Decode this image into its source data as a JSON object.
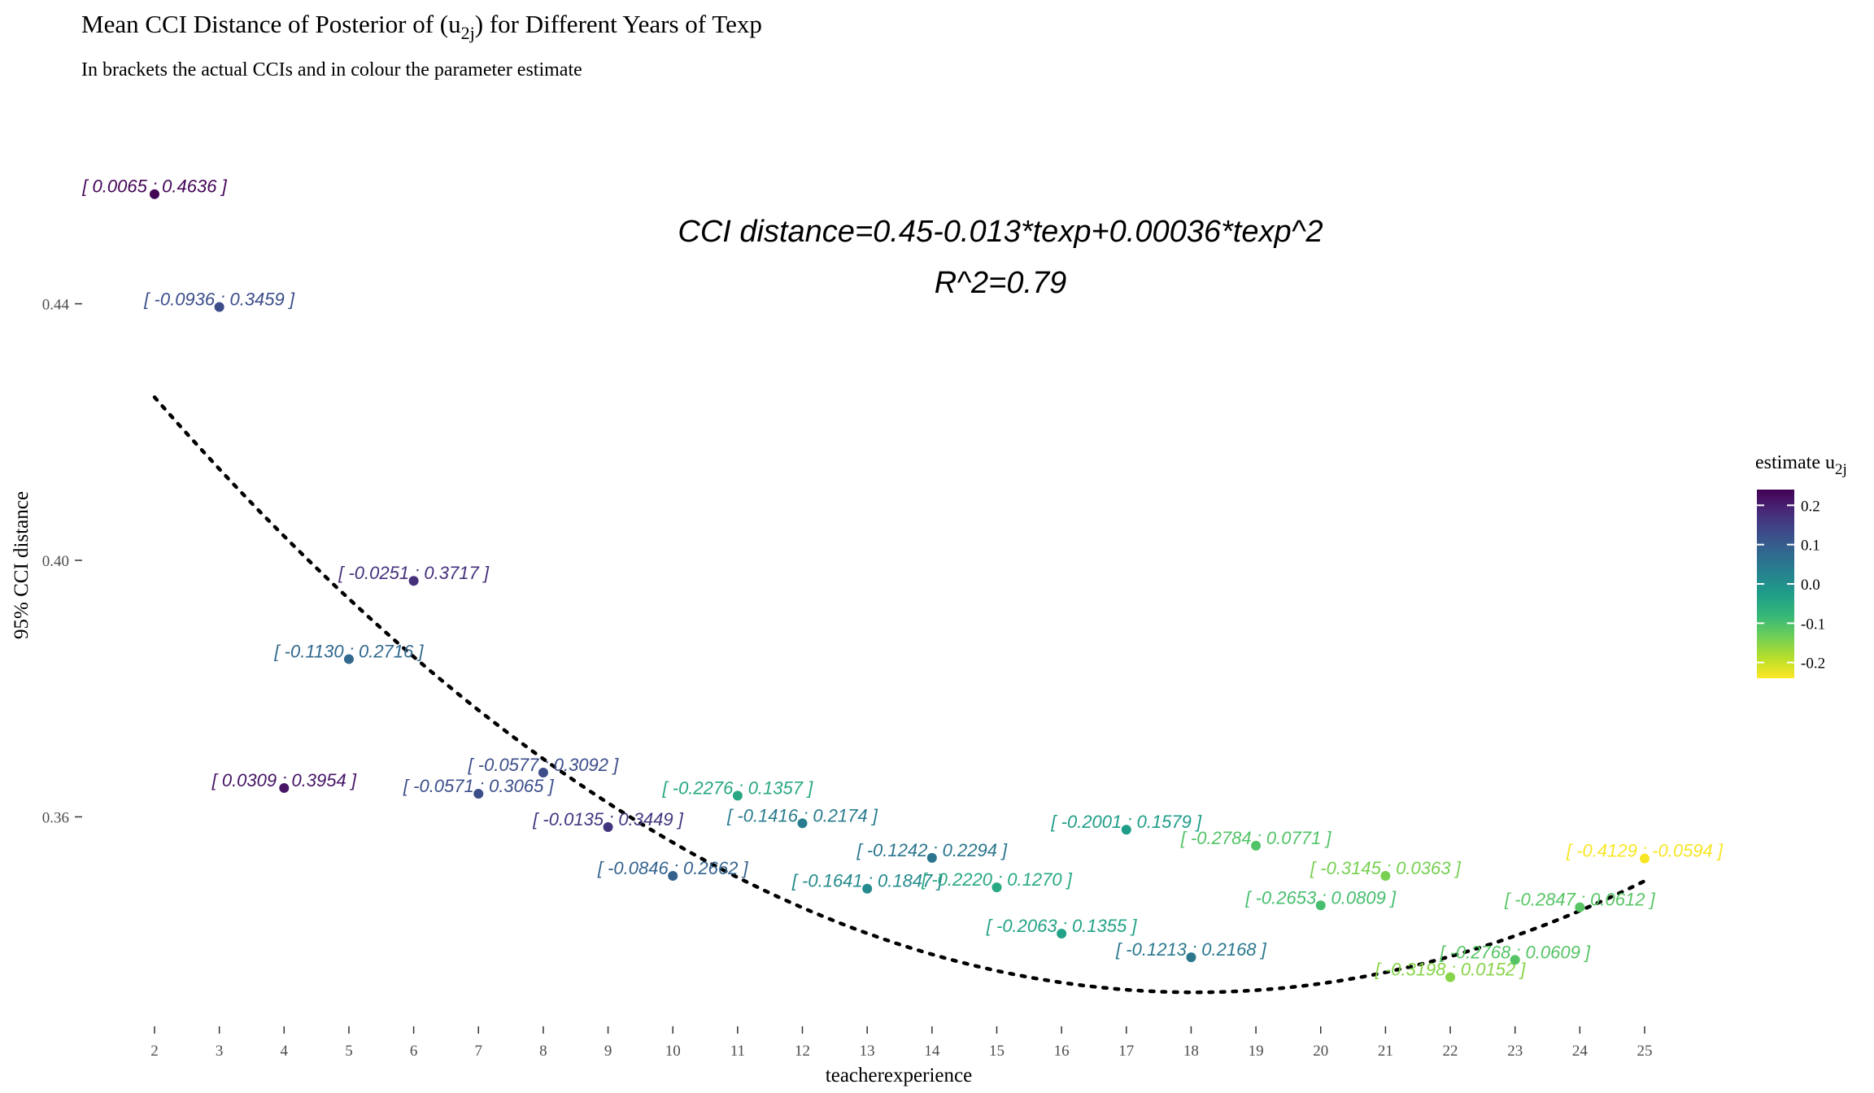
{
  "chart_data": {
    "type": "scatter",
    "title_main": "Mean CCI Distance of Posterior of (u",
    "title_sub_index": "2j",
    "title_end": ") for Different Years of Texp",
    "subtitle": "In brackets the actual CCIs and in colour the parameter estimate",
    "xlabel": "teacherexperience",
    "ylabel": "95% CCI distance",
    "xlim": [
      2,
      25
    ],
    "ylim": [
      0.33,
      0.47
    ],
    "x_ticks": [
      2,
      3,
      4,
      5,
      6,
      7,
      8,
      9,
      10,
      11,
      12,
      13,
      14,
      15,
      16,
      17,
      18,
      19,
      20,
      21,
      22,
      23,
      24,
      25
    ],
    "y_ticks": [
      {
        "value": 0.36,
        "label": "0.36"
      },
      {
        "value": 0.4,
        "label": "0.40"
      },
      {
        "value": 0.44,
        "label": "0.44"
      }
    ],
    "grid": false,
    "annotation": [
      "CCI distance=0.45-0.013*texp+0.00036*texp^2",
      "R^2=0.79"
    ],
    "fit_curve": {
      "intercept": 0.45,
      "linear": -0.013,
      "quadratic": 0.00036,
      "style": "dotted"
    },
    "points": [
      {
        "x": 2,
        "y": 0.4571,
        "estimate": 0.235,
        "label": "[ 0.0065 ; 0.4636 ]"
      },
      {
        "x": 3,
        "y": 0.4395,
        "estimate": 0.126,
        "label": "[ -0.0936 ; 0.3459 ]"
      },
      {
        "x": 4,
        "y": 0.3645,
        "estimate": 0.213,
        "label": "[ 0.0309 ; 0.3954 ]"
      },
      {
        "x": 5,
        "y": 0.3846,
        "estimate": 0.079,
        "label": "[ -0.1130 ; 0.2716 ]"
      },
      {
        "x": 6,
        "y": 0.3968,
        "estimate": 0.173,
        "label": "[ -0.0251 ; 0.3717 ]"
      },
      {
        "x": 7,
        "y": 0.3636,
        "estimate": 0.125,
        "label": "[ -0.0571 ; 0.3065 ]"
      },
      {
        "x": 8,
        "y": 0.3669,
        "estimate": 0.126,
        "label": "[ -0.0577 ; 0.3092 ]"
      },
      {
        "x": 9,
        "y": 0.3584,
        "estimate": 0.166,
        "label": "[ -0.0135 ; 0.3449 ]"
      },
      {
        "x": 10,
        "y": 0.3508,
        "estimate": 0.091,
        "label": "[ -0.0846 ; 0.2662 ]"
      },
      {
        "x": 11,
        "y": 0.3633,
        "estimate": -0.046,
        "label": "[ -0.2276 ; 0.1357 ]"
      },
      {
        "x": 12,
        "y": 0.359,
        "estimate": 0.038,
        "label": "[ -0.1416 ; 0.2174 ]"
      },
      {
        "x": 13,
        "y": 0.3488,
        "estimate": 0.011,
        "label": "[ -0.1641 ; 0.1847 ]"
      },
      {
        "x": 14,
        "y": 0.3536,
        "estimate": 0.053,
        "label": "[ -0.1242 ; 0.2294 ]"
      },
      {
        "x": 15,
        "y": 0.349,
        "estimate": -0.048,
        "label": "[ -0.2220 ; 0.1270 ]"
      },
      {
        "x": 16,
        "y": 0.3418,
        "estimate": -0.035,
        "label": "[ -0.2063 ; 0.1355 ]"
      },
      {
        "x": 17,
        "y": 0.358,
        "estimate": -0.024,
        "label": "[ -0.2001 ; 0.1579 ]"
      },
      {
        "x": 18,
        "y": 0.3381,
        "estimate": 0.049,
        "label": "[ -0.1213 ; 0.2168 ]"
      },
      {
        "x": 19,
        "y": 0.3555,
        "estimate": -0.107,
        "label": "[ -0.2784 ; 0.0771 ]"
      },
      {
        "x": 20,
        "y": 0.3462,
        "estimate": -0.096,
        "label": "[ -0.2653 ; 0.0809 ]"
      },
      {
        "x": 21,
        "y": 0.3508,
        "estimate": -0.14,
        "label": "[ -0.3145 ; 0.0363 ]"
      },
      {
        "x": 22,
        "y": 0.335,
        "estimate": -0.152,
        "label": "[ -0.3198 ; 0.0152 ]"
      },
      {
        "x": 23,
        "y": 0.3377,
        "estimate": -0.111,
        "label": "[ -0.2768 ; 0.0609 ]"
      },
      {
        "x": 24,
        "y": 0.3459,
        "estimate": -0.113,
        "label": "[ -0.2847 ; 0.0612 ]"
      },
      {
        "x": 25,
        "y": 0.3535,
        "estimate": -0.236,
        "label": "[ -0.4129 ; -0.0594 ]"
      }
    ],
    "legend": {
      "title_main": "estimate u",
      "title_sub_index": "2j",
      "placement": "right",
      "range": [
        -0.24,
        0.24
      ],
      "ticks": [
        {
          "value": 0.2,
          "label": "0.2"
        },
        {
          "value": 0.1,
          "label": "0.1"
        },
        {
          "value": 0.0,
          "label": "0.0"
        },
        {
          "value": -0.1,
          "label": "-0.1"
        },
        {
          "value": -0.2,
          "label": "-0.2"
        }
      ],
      "palette": "viridis",
      "colors": [
        "#440154",
        "#482878",
        "#3e4989",
        "#31688e",
        "#26828e",
        "#1f9e89",
        "#35b779",
        "#6ece58",
        "#b5de2b",
        "#fde725"
      ]
    }
  }
}
